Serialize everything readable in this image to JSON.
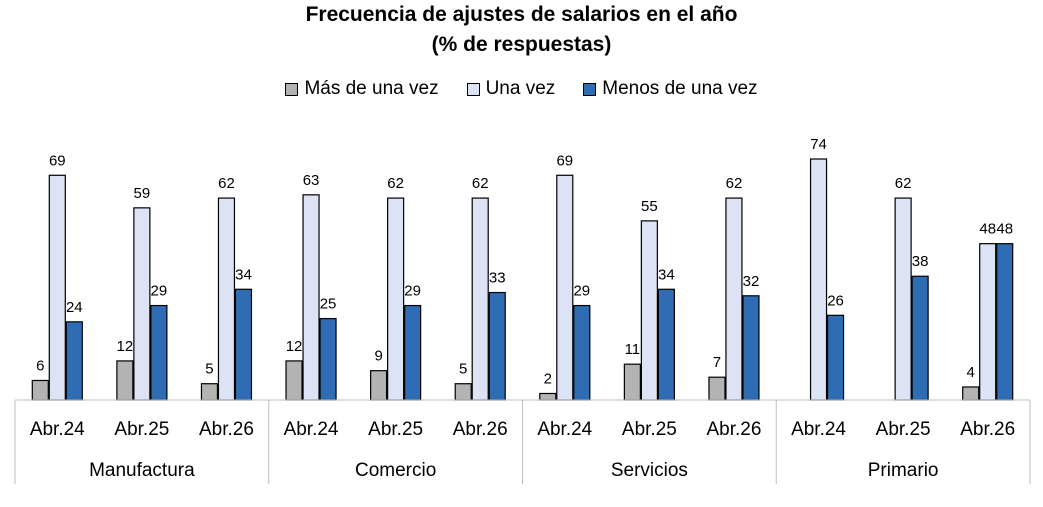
{
  "chart_data": {
    "type": "bar",
    "title": "Frecuencia de ajustes de salarios en el año",
    "subtitle": "(% de respuestas)",
    "groups": [
      "Manufactura",
      "Comercio",
      "Servicios",
      "Primario"
    ],
    "categories": [
      "Abr.24",
      "Abr.25",
      "Abr.26"
    ],
    "series": [
      {
        "name": "Más de una vez",
        "color": "#b3b3b3",
        "values": [
          [
            6,
            12,
            5
          ],
          [
            12,
            9,
            5
          ],
          [
            2,
            11,
            7
          ],
          [
            null,
            null,
            4
          ]
        ]
      },
      {
        "name": "Una vez",
        "color": "#dce3f5",
        "values": [
          [
            69,
            59,
            62
          ],
          [
            63,
            62,
            62
          ],
          [
            69,
            55,
            62
          ],
          [
            74,
            62,
            48
          ]
        ]
      },
      {
        "name": "Menos de una vez",
        "color": "#2e6db4",
        "values": [
          [
            24,
            29,
            34
          ],
          [
            25,
            29,
            33
          ],
          [
            29,
            34,
            32
          ],
          [
            26,
            38,
            48
          ]
        ]
      }
    ],
    "ylim": [
      0,
      80
    ],
    "grid": false,
    "legend_position": "top"
  }
}
